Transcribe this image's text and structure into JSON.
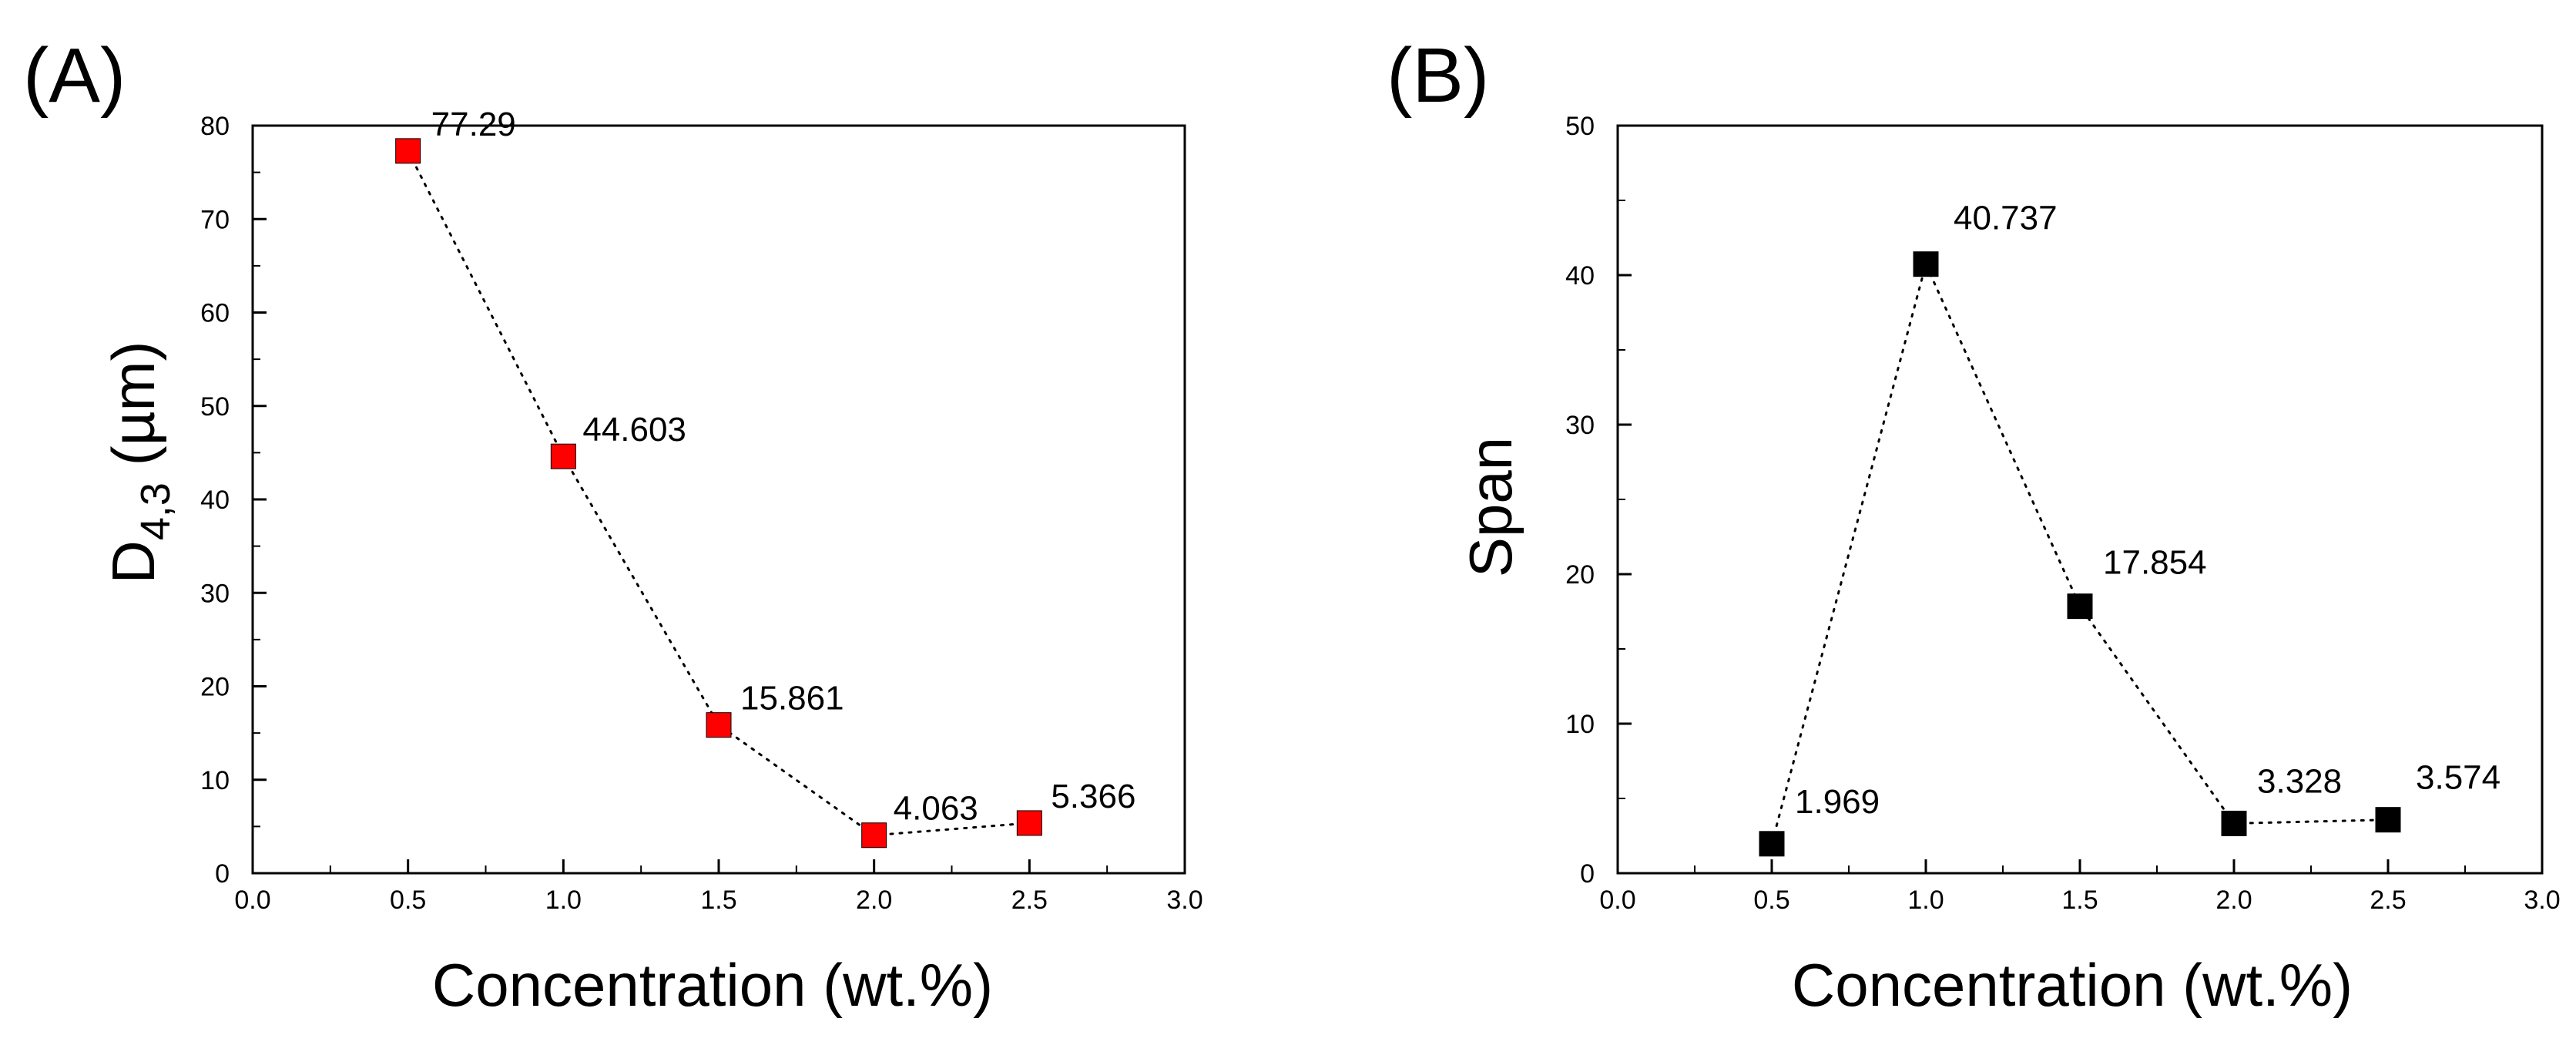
{
  "chart_data": [
    {
      "type": "line",
      "panel_label": "(A)",
      "title": "",
      "xlabel": "Concentration (wt.%)",
      "ylabel_main": "D",
      "ylabel_sub": "4,3",
      "ylabel_unit": " (µm)",
      "xlim": [
        0.0,
        3.0
      ],
      "ylim": [
        0,
        80
      ],
      "x_ticks": [
        "0.0",
        "0.5",
        "1.0",
        "1.5",
        "2.0",
        "2.5",
        "3.0"
      ],
      "y_ticks": [
        "0",
        "10",
        "20",
        "30",
        "40",
        "50",
        "60",
        "70",
        "80"
      ],
      "marker_color": "#ff0000",
      "line_style": "dotted",
      "series": [
        {
          "name": "D4,3",
          "x": [
            0.5,
            1.0,
            1.5,
            2.0,
            2.5
          ],
          "values": [
            77.29,
            44.603,
            15.861,
            4.063,
            5.366
          ],
          "labels": [
            "77.29",
            "44.603",
            "15.861",
            "4.063",
            "5.366"
          ]
        }
      ]
    },
    {
      "type": "line",
      "panel_label": "(B)",
      "title": "",
      "xlabel": "Concentration (wt.%)",
      "ylabel_main": "Span",
      "ylabel_sub": "",
      "ylabel_unit": "",
      "xlim": [
        0.0,
        3.0
      ],
      "ylim": [
        0,
        50
      ],
      "x_ticks": [
        "0.0",
        "0.5",
        "1.0",
        "1.5",
        "2.0",
        "2.5",
        "3.0"
      ],
      "y_ticks": [
        "0",
        "10",
        "20",
        "30",
        "40",
        "50"
      ],
      "marker_color": "#000000",
      "line_style": "dotted",
      "series": [
        {
          "name": "Span",
          "x": [
            0.5,
            1.0,
            1.5,
            2.0,
            2.5
          ],
          "values": [
            1.969,
            40.737,
            17.854,
            3.328,
            3.574
          ],
          "labels": [
            "1.969",
            "40.737",
            "17.854",
            "3.328",
            "3.574"
          ]
        }
      ]
    }
  ]
}
